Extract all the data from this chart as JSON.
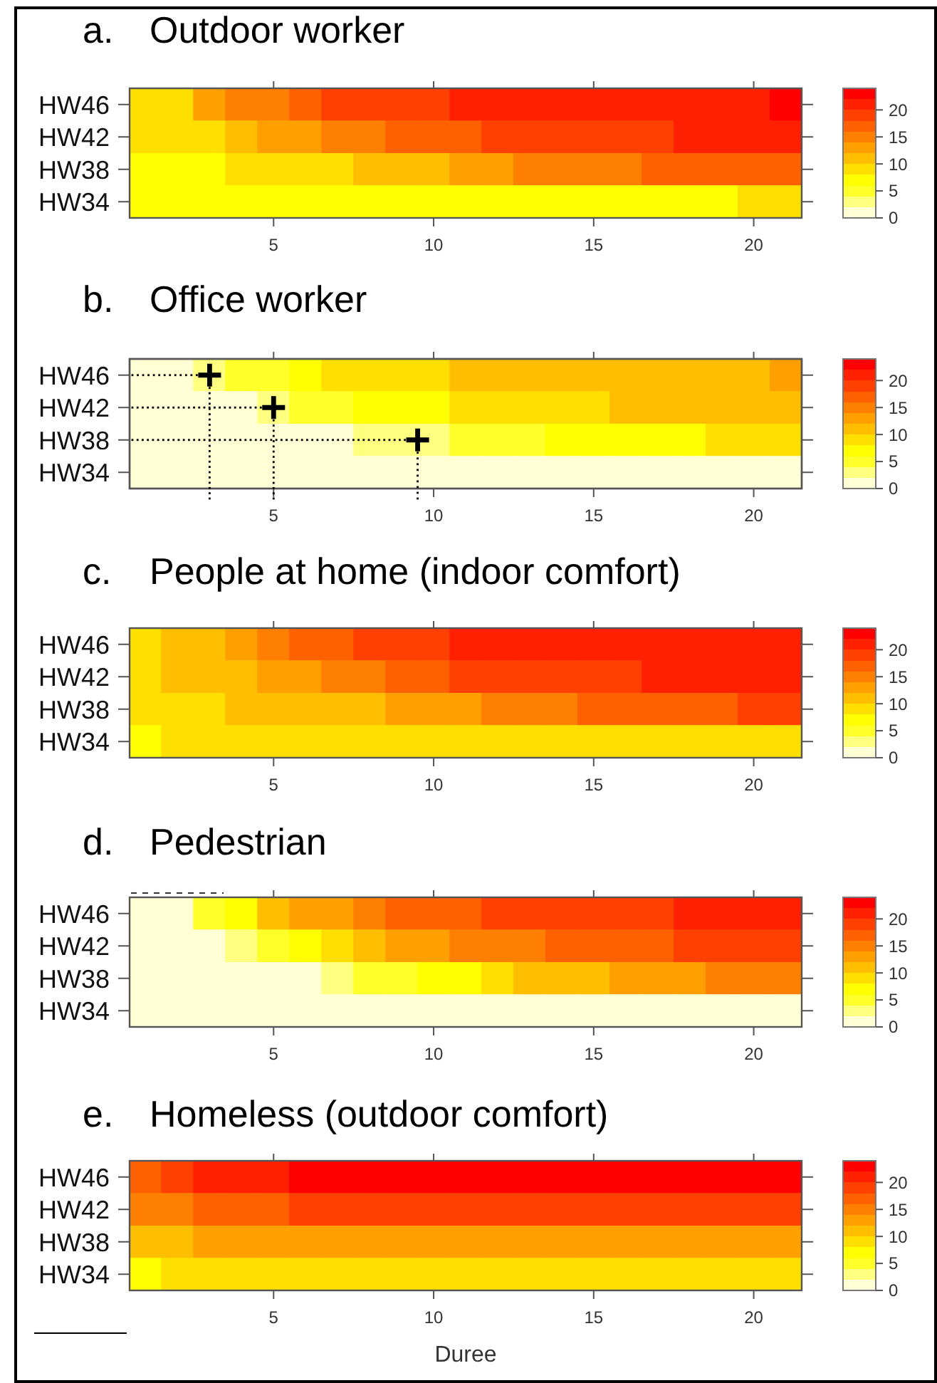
{
  "chart_data": [
    {
      "type": "heatmap",
      "title": "a. Outdoor worker",
      "x": [
        1,
        2,
        3,
        4,
        5,
        6,
        7,
        8,
        9,
        10,
        11,
        12,
        13,
        14,
        15,
        16,
        17,
        18,
        19,
        20,
        21
      ],
      "xlim": [
        0.5,
        21.5
      ],
      "xticks": [
        5,
        10,
        15,
        20
      ],
      "y_categories": [
        "HW46",
        "HW42",
        "HW38",
        "HW34"
      ],
      "cells": [
        [
          9,
          9,
          13,
          15,
          15,
          17,
          19,
          19,
          19,
          19,
          21,
          21,
          21,
          21,
          21,
          21,
          21,
          21,
          21,
          21,
          23
        ],
        [
          9,
          9,
          9,
          11,
          13,
          13,
          15,
          15,
          17,
          17,
          17,
          19,
          19,
          19,
          19,
          19,
          19,
          21,
          21,
          21,
          21
        ],
        [
          7,
          7,
          7,
          9,
          9,
          9,
          9,
          11,
          11,
          11,
          13,
          13,
          15,
          15,
          15,
          15,
          17,
          17,
          17,
          17,
          17
        ],
        [
          7,
          7,
          7,
          7,
          7,
          7,
          7,
          7,
          7,
          7,
          7,
          7,
          7,
          7,
          7,
          7,
          7,
          7,
          7,
          9,
          9
        ]
      ],
      "clim": [
        0,
        24
      ],
      "cticks": [
        0,
        5,
        10,
        15,
        20
      ]
    },
    {
      "type": "scatter",
      "orientation": "horizontal",
      "categories": [
        "HW46",
        "HW42",
        "HW38",
        "HW34"
      ],
      "values": [
        3,
        5,
        9.5,
        null
      ],
      "xlim": [
        0.5,
        21.5
      ],
      "color": "#000000",
      "marker": "cross",
      "tick_labels": "y"
    },
    {
      "type": "heatmap",
      "title": "b. Office worker",
      "x": [
        1,
        2,
        3,
        4,
        5,
        6,
        7,
        8,
        9,
        10,
        11,
        12,
        13,
        14,
        15,
        16,
        17,
        18,
        19,
        20,
        21
      ],
      "xlim": [
        0.5,
        21.5
      ],
      "xticks": [
        5,
        10,
        15,
        20
      ],
      "y_categories": [
        "HW46",
        "HW42",
        "HW38",
        "HW34"
      ],
      "tick_labels": "x",
      "cells": [
        [
          1,
          1,
          3,
          5,
          5,
          7,
          9,
          9,
          9,
          9,
          11,
          11,
          11,
          11,
          11,
          11,
          11,
          11,
          11,
          11,
          13
        ],
        [
          1,
          1,
          1,
          1,
          3,
          5,
          5,
          7,
          7,
          7,
          9,
          9,
          9,
          9,
          9,
          11,
          11,
          11,
          11,
          11,
          11
        ],
        [
          1,
          1,
          1,
          1,
          1,
          1,
          1,
          3,
          3,
          3,
          5,
          5,
          5,
          7,
          7,
          7,
          7,
          7,
          9,
          9,
          9
        ],
        [
          1,
          1,
          1,
          1,
          1,
          1,
          1,
          1,
          1,
          1,
          1,
          1,
          1,
          1,
          1,
          1,
          1,
          1,
          1,
          1,
          1
        ]
      ],
      "clim": [
        0,
        24
      ],
      "cticks": [
        0,
        5,
        10,
        15,
        20
      ]
    },
    {
      "type": "heatmap",
      "title": "c. People at home (indoor comfort)",
      "x": [
        1,
        2,
        3,
        4,
        5,
        6,
        7,
        8,
        9,
        10,
        11,
        12,
        13,
        14,
        15,
        16,
        17,
        18,
        19,
        20,
        21
      ],
      "xlim": [
        0.5,
        21.5
      ],
      "xticks": [
        5,
        10,
        15,
        20
      ],
      "y_categories": [
        "HW46",
        "HW42",
        "HW38",
        "HW34"
      ],
      "cells": [
        [
          9,
          11,
          11,
          13,
          15,
          17,
          17,
          19,
          19,
          19,
          21,
          21,
          21,
          21,
          21,
          21,
          21,
          21,
          21,
          21,
          21
        ],
        [
          9,
          11,
          11,
          11,
          13,
          13,
          15,
          15,
          17,
          17,
          19,
          19,
          19,
          19,
          19,
          19,
          21,
          21,
          21,
          21,
          21
        ],
        [
          9,
          9,
          9,
          11,
          11,
          11,
          11,
          11,
          13,
          13,
          13,
          15,
          15,
          15,
          17,
          17,
          17,
          17,
          17,
          19,
          19
        ],
        [
          7,
          9,
          9,
          9,
          9,
          9,
          9,
          9,
          9,
          9,
          9,
          9,
          9,
          9,
          9,
          9,
          9,
          9,
          9,
          9,
          9
        ]
      ],
      "clim": [
        0,
        24
      ],
      "cticks": [
        0,
        5,
        10,
        15,
        20
      ]
    },
    {
      "type": "heatmap",
      "title": "d. Pedestrian",
      "x": [
        1,
        2,
        3,
        4,
        5,
        6,
        7,
        8,
        9,
        10,
        11,
        12,
        13,
        14,
        15,
        16,
        17,
        18,
        19,
        20,
        21
      ],
      "xlim": [
        0.5,
        21.5
      ],
      "xticks": [
        5,
        10,
        15,
        20
      ],
      "y_categories": [
        "HW46",
        "HW42",
        "HW38",
        "HW34"
      ],
      "cells": [
        [
          1,
          1,
          5,
          7,
          11,
          13,
          13,
          15,
          17,
          17,
          17,
          19,
          19,
          19,
          19,
          19,
          19,
          21,
          21,
          21,
          21
        ],
        [
          1,
          1,
          1,
          3,
          5,
          7,
          9,
          11,
          13,
          13,
          15,
          15,
          15,
          17,
          17,
          17,
          17,
          19,
          19,
          19,
          19
        ],
        [
          1,
          1,
          1,
          1,
          1,
          1,
          3,
          5,
          5,
          7,
          7,
          9,
          11,
          11,
          11,
          13,
          13,
          13,
          15,
          15,
          15
        ],
        [
          1,
          1,
          1,
          1,
          1,
          1,
          1,
          1,
          1,
          1,
          1,
          1,
          1,
          1,
          1,
          1,
          1,
          1,
          1,
          1,
          1
        ]
      ],
      "clim": [
        0,
        24
      ],
      "cticks": [
        0,
        5,
        10,
        15,
        20
      ]
    },
    {
      "type": "heatmap",
      "title": "e. Homeless (outdoor comfort)",
      "xlabel": "Duree",
      "x": [
        1,
        2,
        3,
        4,
        5,
        6,
        7,
        8,
        9,
        10,
        11,
        12,
        13,
        14,
        15,
        16,
        17,
        18,
        19,
        20,
        21
      ],
      "xlim": [
        0.5,
        21.5
      ],
      "xticks": [
        5,
        10,
        15,
        20
      ],
      "y_categories": [
        "HW46",
        "HW42",
        "HW38",
        "HW34"
      ],
      "cells": [
        [
          17,
          19,
          21,
          21,
          21,
          23,
          23,
          23,
          23,
          23,
          23,
          23,
          23,
          23,
          23,
          23,
          23,
          23,
          23,
          23,
          23
        ],
        [
          15,
          15,
          17,
          17,
          17,
          19,
          19,
          19,
          19,
          19,
          19,
          19,
          19,
          19,
          19,
          19,
          19,
          19,
          19,
          19,
          19
        ],
        [
          11,
          11,
          13,
          13,
          13,
          13,
          13,
          13,
          13,
          13,
          13,
          13,
          13,
          13,
          13,
          13,
          13,
          13,
          13,
          13,
          13
        ],
        [
          7,
          9,
          9,
          9,
          9,
          9,
          9,
          9,
          9,
          9,
          9,
          9,
          9,
          9,
          9,
          9,
          9,
          9,
          9,
          9,
          9
        ]
      ],
      "clim": [
        0,
        24
      ],
      "cticks": [
        0,
        5,
        10,
        15,
        20
      ]
    }
  ]
}
